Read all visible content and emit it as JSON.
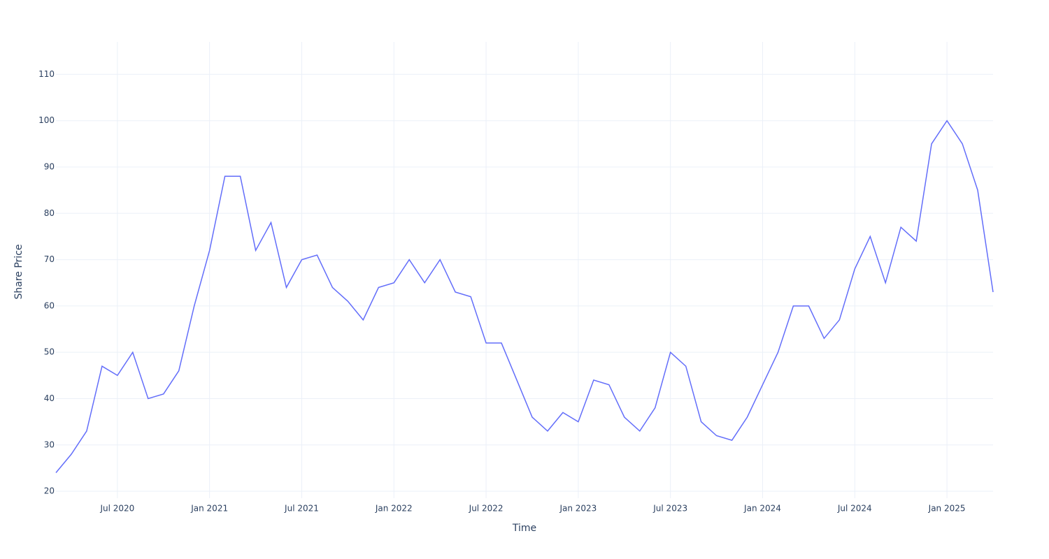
{
  "chart_data": {
    "type": "line",
    "x_label": "Time",
    "y_label": "Share Price",
    "x": [
      "2020-03",
      "2020-04",
      "2020-05",
      "2020-06",
      "2020-07",
      "2020-08",
      "2020-09",
      "2020-10",
      "2020-11",
      "2020-12",
      "2021-01",
      "2021-02",
      "2021-03",
      "2021-04",
      "2021-05",
      "2021-06",
      "2021-07",
      "2021-08",
      "2021-09",
      "2021-10",
      "2021-11",
      "2021-12",
      "2022-01",
      "2022-02",
      "2022-03",
      "2022-04",
      "2022-05",
      "2022-06",
      "2022-07",
      "2022-08",
      "2022-09",
      "2022-10",
      "2022-11",
      "2022-12",
      "2023-01",
      "2023-02",
      "2023-03",
      "2023-04",
      "2023-05",
      "2023-06",
      "2023-07",
      "2023-08",
      "2023-09",
      "2023-10",
      "2023-11",
      "2023-12",
      "2024-01",
      "2024-02",
      "2024-03",
      "2024-04",
      "2024-05",
      "2024-06",
      "2024-07",
      "2024-08",
      "2024-09",
      "2024-10",
      "2024-11",
      "2024-12",
      "2025-01",
      "2025-02",
      "2025-03",
      "2025-04"
    ],
    "series": [
      {
        "name": "Share Price",
        "color": "#636efa",
        "values": [
          24,
          28,
          33,
          47,
          45,
          50,
          40,
          41,
          46,
          60,
          72,
          88,
          88,
          72,
          78,
          64,
          70,
          71,
          64,
          61,
          57,
          64,
          65,
          70,
          65,
          70,
          63,
          62,
          52,
          52,
          44,
          36,
          33,
          37,
          35,
          44,
          43,
          36,
          33,
          38,
          50,
          47,
          35,
          32,
          31,
          36,
          43,
          50,
          60,
          60,
          53,
          57,
          68,
          75,
          65,
          77,
          74,
          95,
          100,
          95,
          85,
          63
        ]
      }
    ],
    "xlim": [
      "2020-03",
      "2025-04"
    ],
    "xticks": [
      {
        "value": "2020-07",
        "label": "Jul 2020"
      },
      {
        "value": "2021-01",
        "label": "Jan 2021"
      },
      {
        "value": "2021-07",
        "label": "Jul 2021"
      },
      {
        "value": "2022-01",
        "label": "Jan 2022"
      },
      {
        "value": "2022-07",
        "label": "Jul 2022"
      },
      {
        "value": "2023-01",
        "label": "Jan 2023"
      },
      {
        "value": "2023-07",
        "label": "Jul 2023"
      },
      {
        "value": "2024-01",
        "label": "Jan 2024"
      },
      {
        "value": "2024-07",
        "label": "Jul 2024"
      },
      {
        "value": "2025-01",
        "label": "Jan 2025"
      }
    ],
    "ylim": [
      18.5,
      117
    ],
    "yticks": [
      20,
      30,
      40,
      50,
      60,
      70,
      80,
      90,
      100,
      110
    ],
    "grid": true
  }
}
